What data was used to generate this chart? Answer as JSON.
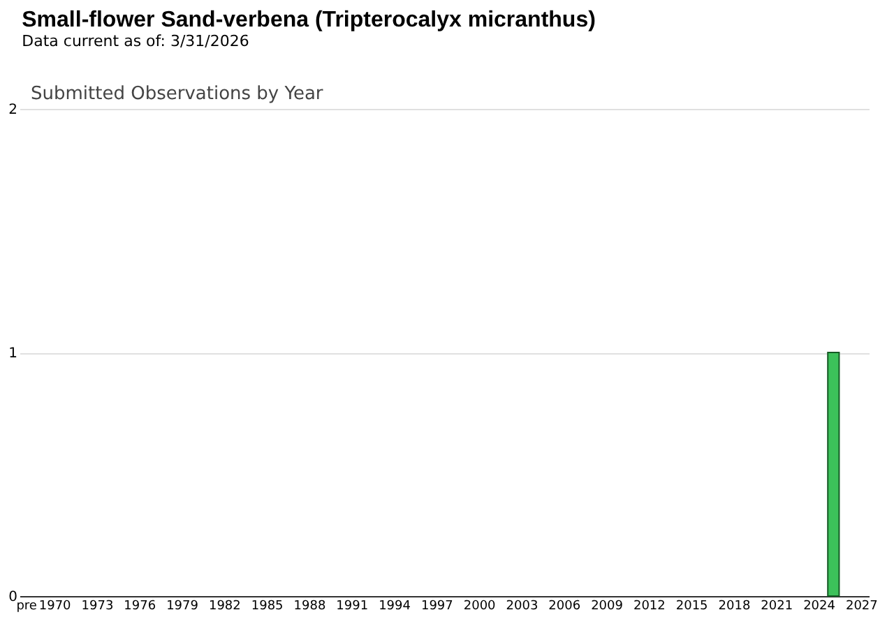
{
  "chart_data": {
    "type": "bar",
    "title": "Small-flower Sand-verbena   (Tripterocalyx micranthus)",
    "subtitle": "Data current as of: 3/31/2026",
    "annotations": [
      "Submitted Observations by Year"
    ],
    "categories": [
      "pre",
      null,
      "1970",
      null,
      null,
      "1973",
      null,
      null,
      "1976",
      null,
      null,
      "1979",
      null,
      null,
      "1982",
      null,
      null,
      "1985",
      null,
      null,
      "1988",
      null,
      null,
      "1991",
      null,
      null,
      "1994",
      null,
      null,
      "1997",
      null,
      null,
      "2000",
      null,
      null,
      "2003",
      null,
      null,
      "2006",
      null,
      null,
      "2009",
      null,
      null,
      "2012",
      null,
      null,
      "2015",
      null,
      null,
      "2018",
      null,
      null,
      "2021",
      null,
      null,
      "2024",
      null,
      null,
      "2027"
    ],
    "values": [
      null,
      null,
      null,
      null,
      null,
      null,
      null,
      null,
      null,
      null,
      null,
      null,
      null,
      null,
      null,
      null,
      null,
      null,
      null,
      null,
      null,
      null,
      null,
      null,
      null,
      null,
      null,
      null,
      null,
      null,
      null,
      null,
      null,
      null,
      null,
      null,
      null,
      null,
      null,
      null,
      null,
      null,
      null,
      null,
      null,
      null,
      null,
      null,
      null,
      null,
      null,
      null,
      null,
      null,
      null,
      null,
      null,
      1,
      null,
      null
    ],
    "color": "#3cc15a",
    "ylim": [
      0,
      2
    ],
    "yticks": [
      0,
      1,
      2
    ],
    "grid": "y"
  }
}
